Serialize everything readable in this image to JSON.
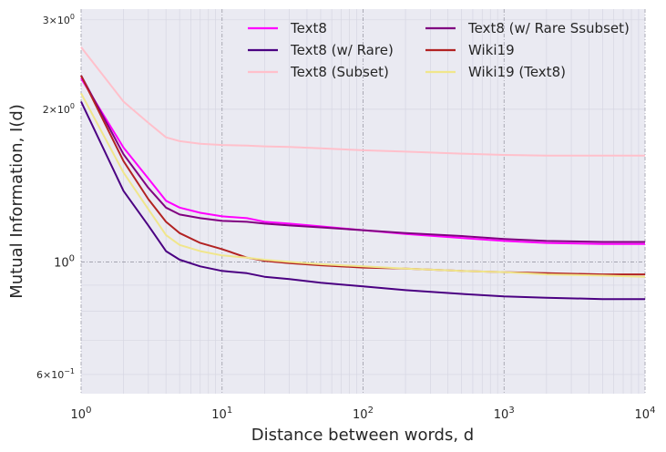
{
  "chart_data": {
    "type": "line",
    "title": "",
    "xlabel": "Distance between words, d",
    "ylabel": "Mutual Information, I(d)",
    "xscale": "log",
    "yscale": "log",
    "xlim": [
      1,
      10000
    ],
    "ylim": [
      0.55,
      3.15
    ],
    "grid": true,
    "legend_position": "top-right",
    "legend_columns": 2,
    "x_ticks": [
      {
        "value": 1,
        "base": "10",
        "exp": "0"
      },
      {
        "value": 10,
        "base": "10",
        "exp": "1"
      },
      {
        "value": 100,
        "base": "10",
        "exp": "2"
      },
      {
        "value": 1000,
        "base": "10",
        "exp": "3"
      },
      {
        "value": 10000,
        "base": "10",
        "exp": "4"
      }
    ],
    "y_ticks": [
      {
        "value": 0.6,
        "mant": "6",
        "exp": "−1",
        "small": true
      },
      {
        "value": 1,
        "mant": "",
        "exp": "",
        "label": "10",
        "labelexp": "0",
        "small": false
      },
      {
        "value": 2,
        "mant": "2",
        "exp": "0",
        "small": true
      },
      {
        "value": 3,
        "mant": "3",
        "exp": "0",
        "small": true
      }
    ],
    "x": [
      1,
      2,
      3,
      4,
      5,
      7,
      10,
      15,
      20,
      30,
      50,
      100,
      200,
      500,
      1000,
      2000,
      5000,
      10000
    ],
    "series": [
      {
        "name": "Text8",
        "color": "#ff00ff",
        "values": [
          2.3,
          1.68,
          1.46,
          1.32,
          1.28,
          1.25,
          1.23,
          1.22,
          1.2,
          1.19,
          1.175,
          1.155,
          1.135,
          1.115,
          1.1,
          1.09,
          1.085,
          1.085
        ]
      },
      {
        "name": "Text8 (w/ Rare)",
        "color": "#4b0082",
        "values": [
          2.07,
          1.38,
          1.18,
          1.05,
          1.01,
          0.98,
          0.96,
          0.95,
          0.935,
          0.925,
          0.91,
          0.895,
          0.88,
          0.865,
          0.855,
          0.85,
          0.845,
          0.845
        ]
      },
      {
        "name": "Text8 (Subset)",
        "color": "#ffc0cb",
        "values": [
          2.65,
          2.07,
          1.88,
          1.76,
          1.73,
          1.71,
          1.7,
          1.695,
          1.69,
          1.685,
          1.675,
          1.66,
          1.65,
          1.635,
          1.625,
          1.62,
          1.62,
          1.62
        ]
      },
      {
        "name": "Text8 (w/ Rare Ssubset)",
        "color": "#800080",
        "values": [
          2.33,
          1.63,
          1.4,
          1.28,
          1.24,
          1.22,
          1.205,
          1.2,
          1.19,
          1.18,
          1.17,
          1.155,
          1.14,
          1.125,
          1.11,
          1.1,
          1.095,
          1.095
        ]
      },
      {
        "name": "Wiki19",
        "color": "#b22222",
        "values": [
          2.33,
          1.58,
          1.33,
          1.2,
          1.14,
          1.09,
          1.06,
          1.02,
          1.005,
          0.995,
          0.985,
          0.975,
          0.97,
          0.96,
          0.955,
          0.95,
          0.945,
          0.945
        ]
      },
      {
        "name": "Wiki19 (Text8)",
        "color": "#f0e68c",
        "values": [
          2.15,
          1.5,
          1.27,
          1.13,
          1.08,
          1.05,
          1.03,
          1.02,
          1.01,
          1.0,
          0.99,
          0.98,
          0.97,
          0.96,
          0.955,
          0.945,
          0.94,
          0.935
        ]
      }
    ]
  }
}
